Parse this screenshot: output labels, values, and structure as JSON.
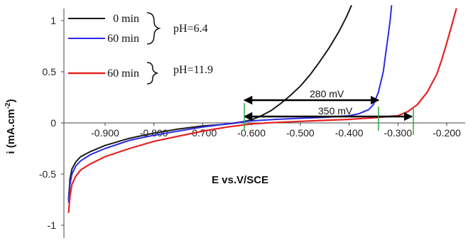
{
  "chart_data": {
    "type": "line",
    "xlabel": "E vs.V/SCE",
    "ylabel": "i (mA.cm",
    "ylabel_sup": "-2",
    "ylabel_close": ")",
    "xlim": [
      -0.98,
      -0.17
    ],
    "ylim": [
      -1.05,
      1.15
    ],
    "x_ticks": [
      {
        "v": -0.9,
        "label": "-0.900"
      },
      {
        "v": -0.8,
        "label": "-0.800"
      },
      {
        "v": -0.7,
        "label": "-0.700"
      },
      {
        "v": -0.6,
        "label": "-0.600"
      },
      {
        "v": -0.5,
        "label": "-0.500"
      },
      {
        "v": -0.4,
        "label": "-0.400"
      },
      {
        "v": -0.3,
        "label": "-0.300"
      },
      {
        "v": -0.2,
        "label": "-0.200"
      }
    ],
    "y_ticks": [
      {
        "v": 1,
        "label": "1"
      },
      {
        "v": 0.5,
        "label": "0.5"
      },
      {
        "v": 0,
        "label": "0"
      },
      {
        "v": -0.5,
        "label": "-0.5"
      },
      {
        "v": -1,
        "label": "-1"
      }
    ],
    "grid": false,
    "legend_position": "top-left",
    "series": [
      {
        "name": "0 min",
        "color": "#1a1a1a",
        "x": [
          -0.975,
          -0.972,
          -0.968,
          -0.96,
          -0.95,
          -0.93,
          -0.9,
          -0.85,
          -0.8,
          -0.75,
          -0.7,
          -0.66,
          -0.63,
          -0.6,
          -0.58,
          -0.56,
          -0.54,
          -0.52,
          -0.5,
          -0.48,
          -0.46,
          -0.44,
          -0.42,
          -0.405,
          -0.395
        ],
        "y": [
          -0.75,
          -0.55,
          -0.45,
          -0.38,
          -0.33,
          -0.28,
          -0.22,
          -0.15,
          -0.1,
          -0.06,
          -0.03,
          -0.015,
          0.0,
          0.03,
          0.07,
          0.12,
          0.19,
          0.27,
          0.36,
          0.47,
          0.6,
          0.74,
          0.9,
          1.04,
          1.15
        ]
      },
      {
        "name": "60 min",
        "color": "#2b2be6",
        "x": [
          -0.975,
          -0.972,
          -0.968,
          -0.96,
          -0.95,
          -0.93,
          -0.9,
          -0.85,
          -0.8,
          -0.75,
          -0.7,
          -0.65,
          -0.62,
          -0.6,
          -0.55,
          -0.5,
          -0.45,
          -0.4,
          -0.38,
          -0.36,
          -0.35,
          -0.34,
          -0.33,
          -0.325,
          -0.32,
          -0.316,
          -0.313
        ],
        "y": [
          -0.78,
          -0.6,
          -0.5,
          -0.42,
          -0.37,
          -0.31,
          -0.25,
          -0.17,
          -0.12,
          -0.08,
          -0.04,
          -0.01,
          0.01,
          0.02,
          0.035,
          0.045,
          0.055,
          0.07,
          0.09,
          0.13,
          0.18,
          0.3,
          0.5,
          0.68,
          0.85,
          1.0,
          1.15
        ]
      },
      {
        "name": "60 min",
        "color": "#e52222",
        "x": [
          -0.975,
          -0.972,
          -0.968,
          -0.96,
          -0.95,
          -0.93,
          -0.9,
          -0.85,
          -0.8,
          -0.75,
          -0.7,
          -0.65,
          -0.6,
          -0.55,
          -0.5,
          -0.45,
          -0.4,
          -0.35,
          -0.3,
          -0.28,
          -0.26,
          -0.24,
          -0.22,
          -0.21,
          -0.2,
          -0.19,
          -0.18
        ],
        "y": [
          -0.88,
          -0.72,
          -0.6,
          -0.52,
          -0.46,
          -0.4,
          -0.33,
          -0.25,
          -0.18,
          -0.13,
          -0.08,
          -0.04,
          -0.01,
          0.005,
          0.015,
          0.025,
          0.035,
          0.05,
          0.07,
          0.11,
          0.18,
          0.3,
          0.48,
          0.62,
          0.78,
          0.95,
          1.12
        ]
      }
    ],
    "legend_groups": [
      {
        "label": "pH=6.4"
      },
      {
        "label": "pH=11.9"
      }
    ],
    "annotations": [
      {
        "label": "280 mV"
      },
      {
        "label": "350 mV"
      }
    ]
  }
}
